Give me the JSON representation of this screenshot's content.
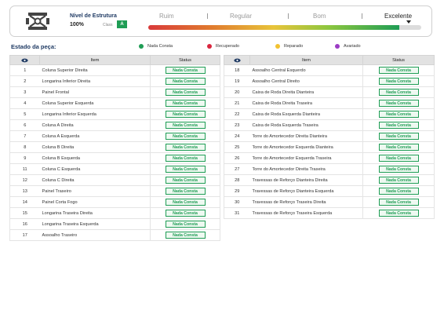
{
  "header": {
    "title": "Nível de Estrutura",
    "percent": "100%",
    "class_label": "Class",
    "class_value": "A",
    "scale": [
      "Ruim",
      "Regular",
      "Bom",
      "Excelente"
    ],
    "active_scale": "Excelente",
    "level_fraction": 0.92
  },
  "state_title": "Estado da peça:",
  "legend": [
    {
      "label": "Nada Consta",
      "color": "#1f9d55"
    },
    {
      "label": "Recuperado",
      "color": "#d9263e"
    },
    {
      "label": "Reparado",
      "color": "#f2c230"
    },
    {
      "label": "Avariado",
      "color": "#9b3bc4"
    }
  ],
  "table_headers": {
    "icon": "eye-icon",
    "item": "Item",
    "status": "Status"
  },
  "left_rows": [
    {
      "n": "1",
      "item": "Coluna Superior Direita",
      "status": "Nada Consta"
    },
    {
      "n": "2",
      "item": "Longarina Inferior Direita",
      "status": "Nada Consta"
    },
    {
      "n": "3",
      "item": "Painel Frontal",
      "status": "Nada Consta"
    },
    {
      "n": "4",
      "item": "Coluna Superior Esquerda",
      "status": "Nada Consta"
    },
    {
      "n": "5",
      "item": "Longarina Inferior Esquerda",
      "status": "Nada Consta"
    },
    {
      "n": "6",
      "item": "Coluna A Direita",
      "status": "Nada Consta"
    },
    {
      "n": "7",
      "item": "Coluna A Esquerda",
      "status": "Nada Consta"
    },
    {
      "n": "8",
      "item": "Coluna B Direita",
      "status": "Nada Consta"
    },
    {
      "n": "9",
      "item": "Coluna B Esquerda",
      "status": "Nada Consta"
    },
    {
      "n": "11",
      "item": "Coluna C Esquerda",
      "status": "Nada Consta"
    },
    {
      "n": "12",
      "item": "Coluna C Direita",
      "status": "Nada Consta"
    },
    {
      "n": "13",
      "item": "Painel Traseiro",
      "status": "Nada Consta"
    },
    {
      "n": "14",
      "item": "Painel Corta Fogo",
      "status": "Nada Consta"
    },
    {
      "n": "15",
      "item": "Longarina Traseira Direita",
      "status": "Nada Consta"
    },
    {
      "n": "16",
      "item": "Longarina Traseira Esquerda",
      "status": "Nada Consta"
    },
    {
      "n": "17",
      "item": "Assoalho Traseiro",
      "status": "Nada Consta"
    }
  ],
  "right_rows": [
    {
      "n": "18",
      "item": "Assoalho Central Esquerdo",
      "status": "Nada Consta"
    },
    {
      "n": "19",
      "item": "Assoalho Central Direito",
      "status": "Nada Consta"
    },
    {
      "n": "20",
      "item": "Caixa de Roda Direita Dianteira",
      "status": "Nada Consta"
    },
    {
      "n": "21",
      "item": "Caixa de Roda Direita Traseira",
      "status": "Nada Consta"
    },
    {
      "n": "22",
      "item": "Caixa de Roda Esquerda Dianteira",
      "status": "Nada Consta"
    },
    {
      "n": "23",
      "item": "Caixa de Roda Esquerda Traseira",
      "status": "Nada Consta"
    },
    {
      "n": "24",
      "item": "Torre do Amortecedor Direita Dianteira",
      "status": "Nada Consta"
    },
    {
      "n": "25",
      "item": "Torre do Amortecedor Esquerda Dianteira",
      "status": "Nada Consta"
    },
    {
      "n": "26",
      "item": "Torre do Amortecedor Esquerda Traseira",
      "status": "Nada Consta"
    },
    {
      "n": "27",
      "item": "Torre do Amortecedor Direita Traseira",
      "status": "Nada Consta"
    },
    {
      "n": "28",
      "item": "Travessas de Reforço Dianteira Direita",
      "status": "Nada Consta"
    },
    {
      "n": "29",
      "item": "Travessas de Reforço Dianteira Esquerda",
      "status": "Nada Consta"
    },
    {
      "n": "30",
      "item": "Travessas de Reforço Traseira Direita",
      "status": "Nada Consta"
    },
    {
      "n": "31",
      "item": "Travessas de Reforço Traseira Esquerda",
      "status": "Nada Consta"
    }
  ]
}
